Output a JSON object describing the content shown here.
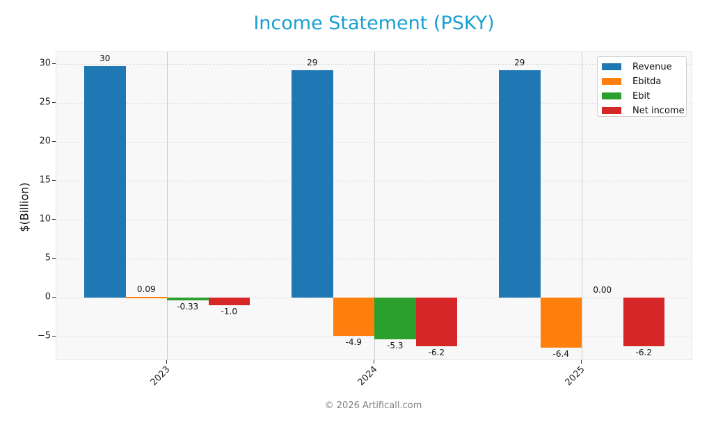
{
  "title": "Income Statement (PSKY)",
  "footer": "© 2026 Artificall.com",
  "colors": {
    "title": "#1a9fd0",
    "revenue": "#1f77b4",
    "ebitda": "#ff7f0e",
    "ebit": "#2ca02c",
    "net_income": "#d62728"
  },
  "chart_data": {
    "type": "bar",
    "title": "Income Statement (PSKY)",
    "xlabel": "",
    "ylabel": "$(Billion)",
    "ylim": [
      -8.1,
      31.5
    ],
    "yticks": [
      -5,
      0,
      5,
      10,
      15,
      20,
      25,
      30
    ],
    "grid": true,
    "legend_position": "upper right",
    "categories": [
      "2023",
      "2024",
      "2025"
    ],
    "series": [
      {
        "name": "Revenue",
        "color": "#1f77b4",
        "values": [
          29.7,
          29.2,
          29.2
        ],
        "labels": [
          "30",
          "29",
          "29"
        ]
      },
      {
        "name": "Ebitda",
        "color": "#ff7f0e",
        "values": [
          0.09,
          -4.9,
          -6.4
        ],
        "labels": [
          "0.09",
          "-4.9",
          "-6.4"
        ]
      },
      {
        "name": "Ebit",
        "color": "#2ca02c",
        "values": [
          -0.33,
          -5.3,
          0.0
        ],
        "labels": [
          "-0.33",
          "-5.3",
          "0.00"
        ]
      },
      {
        "name": "Net income",
        "color": "#d62728",
        "values": [
          -1.0,
          -6.2,
          -6.2
        ],
        "labels": [
          "-1.0",
          "-6.2",
          "-6.2"
        ]
      }
    ]
  }
}
